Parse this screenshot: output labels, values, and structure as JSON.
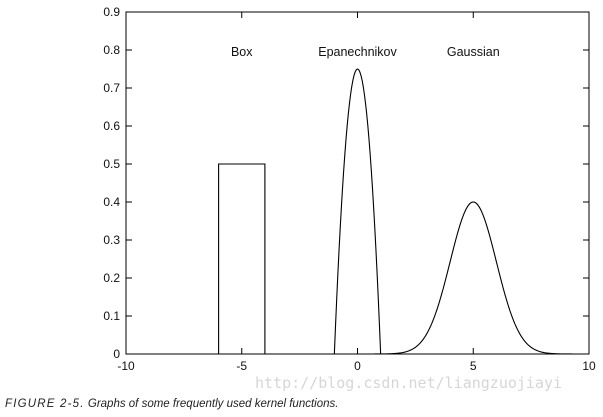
{
  "chart_data": {
    "type": "line",
    "title": "",
    "xlabel": "",
    "ylabel": "",
    "xlim": [
      -10,
      10
    ],
    "ylim": [
      0,
      0.9
    ],
    "xticks": [
      -10,
      -5,
      0,
      5,
      10
    ],
    "yticks": [
      0,
      0.1,
      0.2,
      0.3,
      0.4,
      0.5,
      0.6,
      0.7,
      0.8,
      0.9
    ],
    "series": [
      {
        "name": "Box",
        "kind": "box",
        "x": [
          -10,
          -6,
          -6,
          -4,
          -4,
          10
        ],
        "y": [
          0,
          0,
          0.5,
          0.5,
          0,
          0
        ]
      },
      {
        "name": "Epanechnikov",
        "kind": "epanechnikov",
        "center": 0,
        "support": [
          -1,
          1
        ],
        "peak": 0.75
      },
      {
        "name": "Gaussian",
        "kind": "gaussian",
        "mean": 5,
        "sd": 1,
        "peak": 0.4
      }
    ],
    "annotations": [
      {
        "text": "Box",
        "x": -5,
        "y": 0.795
      },
      {
        "text": "Epanechnikov",
        "x": 0,
        "y": 0.795
      },
      {
        "text": "Gaussian",
        "x": 5,
        "y": 0.795
      }
    ],
    "grid": false,
    "legend": "none",
    "line_color": "#000000"
  },
  "caption": {
    "label": "FIGURE 2-5.",
    "text": "Graphs of some frequently used kernel functions."
  },
  "watermark": "http://blog.csdn.net/liangzuojiayi"
}
